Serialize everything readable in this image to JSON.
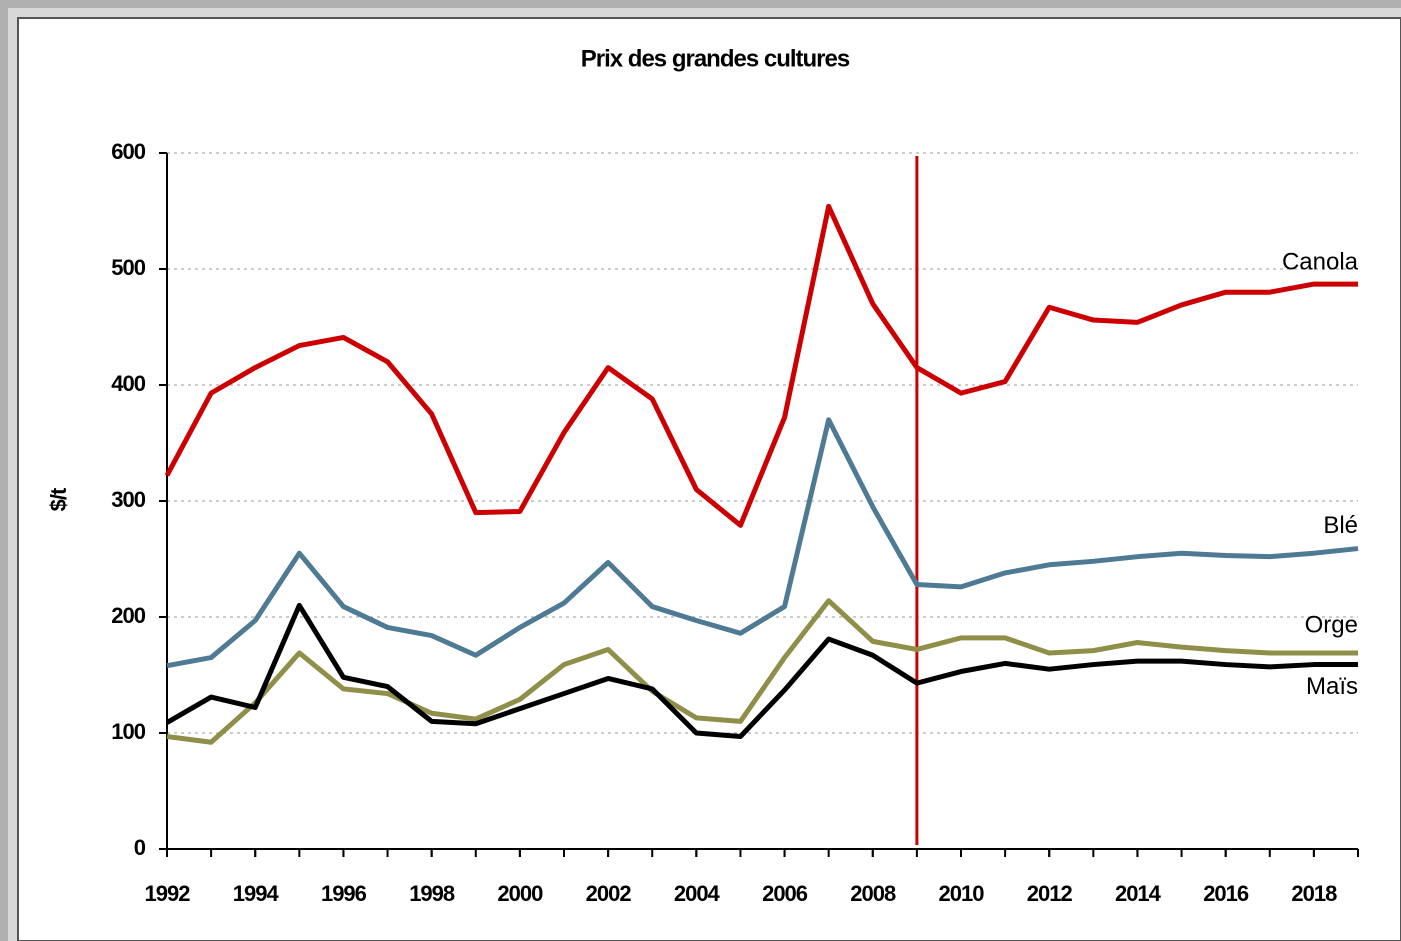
{
  "chart_data": {
    "type": "line",
    "title": "Prix des grandes cultures",
    "y_label": "$/t",
    "x": [
      1992,
      1993,
      1994,
      1995,
      1996,
      1997,
      1998,
      1999,
      2000,
      2001,
      2002,
      2003,
      2004,
      2005,
      2006,
      2007,
      2008,
      2009,
      2010,
      2011,
      2012,
      2013,
      2014,
      2015,
      2016,
      2017,
      2018,
      2019
    ],
    "series": [
      {
        "name": "Canola",
        "color": "#cc0000",
        "values": [
          322,
          393,
          415,
          434,
          441,
          420,
          375,
          290,
          291,
          359,
          415,
          388,
          310,
          279,
          372,
          554,
          470,
          415,
          393,
          403,
          467,
          456,
          454,
          469,
          480,
          480,
          487,
          487
        ]
      },
      {
        "name": "Blé",
        "color": "#4f7a94",
        "values": [
          158,
          165,
          197,
          255,
          209,
          191,
          184,
          167,
          191,
          212,
          247,
          209,
          197,
          186,
          209,
          370,
          295,
          228,
          226,
          238,
          245,
          248,
          252,
          255,
          253,
          252,
          255,
          259
        ]
      },
      {
        "name": "Orge",
        "color": "#8f8f4a",
        "values": [
          97,
          92,
          126,
          169,
          138,
          134,
          117,
          112,
          129,
          159,
          172,
          136,
          113,
          110,
          165,
          214,
          179,
          172,
          182,
          182,
          169,
          171,
          178,
          174,
          171,
          169,
          169,
          169
        ]
      },
      {
        "name": "Maïs",
        "color": "#000000",
        "values": [
          109,
          131,
          122,
          210,
          148,
          140,
          110,
          108,
          121,
          134,
          147,
          138,
          100,
          97,
          137,
          181,
          167,
          143,
          153,
          160,
          155,
          159,
          162,
          162,
          159,
          157,
          159,
          159
        ]
      }
    ],
    "xlim": [
      1992,
      2019
    ],
    "xticks": [
      1992,
      1994,
      1996,
      1998,
      2000,
      2002,
      2004,
      2006,
      2008,
      2010,
      2012,
      2014,
      2016,
      2018
    ],
    "ylim": [
      0,
      600
    ],
    "yticks": [
      0,
      100,
      200,
      300,
      400,
      500,
      600
    ],
    "grid": true,
    "vline": {
      "x": 2009,
      "color": "#cc0000"
    }
  }
}
